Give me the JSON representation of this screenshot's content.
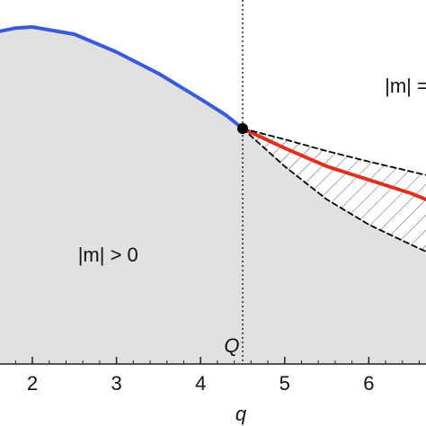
{
  "chart_data": {
    "type": "line",
    "xlabel": "q",
    "xlim": [
      1.615,
      6.68
    ],
    "ylim": [
      0,
      1
    ],
    "xticks": [
      2,
      3,
      4,
      5,
      6
    ],
    "series": [
      {
        "color": "#3a5bd9",
        "style": "solid",
        "x": [
          1.615,
          1.8,
          2.0,
          2.5,
          3.0,
          3.5,
          4.0,
          4.3,
          4.5
        ],
        "values": [
          0.914,
          0.923,
          0.926,
          0.906,
          0.857,
          0.798,
          0.728,
          0.684,
          0.647
        ]
      },
      {
        "color": "#e0301e",
        "style": "solid",
        "x": [
          4.5,
          5.0,
          5.5,
          6.0,
          6.5,
          6.68
        ],
        "values": [
          0.647,
          0.593,
          0.543,
          0.506,
          0.469,
          0.452
        ]
      },
      {
        "color": "#000000",
        "style": "dashed",
        "x": [
          4.5,
          5.0,
          5.5,
          6.0,
          6.68
        ],
        "values": [
          0.647,
          0.617,
          0.585,
          0.556,
          0.519
        ]
      },
      {
        "color": "#000000",
        "style": "dashed",
        "x": [
          4.5,
          5.0,
          5.5,
          6.0,
          6.5,
          6.68
        ],
        "values": [
          0.647,
          0.543,
          0.452,
          0.383,
          0.328,
          0.309
        ]
      }
    ],
    "vline": {
      "value": 4.5,
      "label": "Q"
    },
    "annotations": [
      {
        "text": "|m| > 0",
        "x": 2.9,
        "y": 0.296
      },
      {
        "text": "|m| =",
        "x": 6.45,
        "y": 0.76
      }
    ]
  }
}
